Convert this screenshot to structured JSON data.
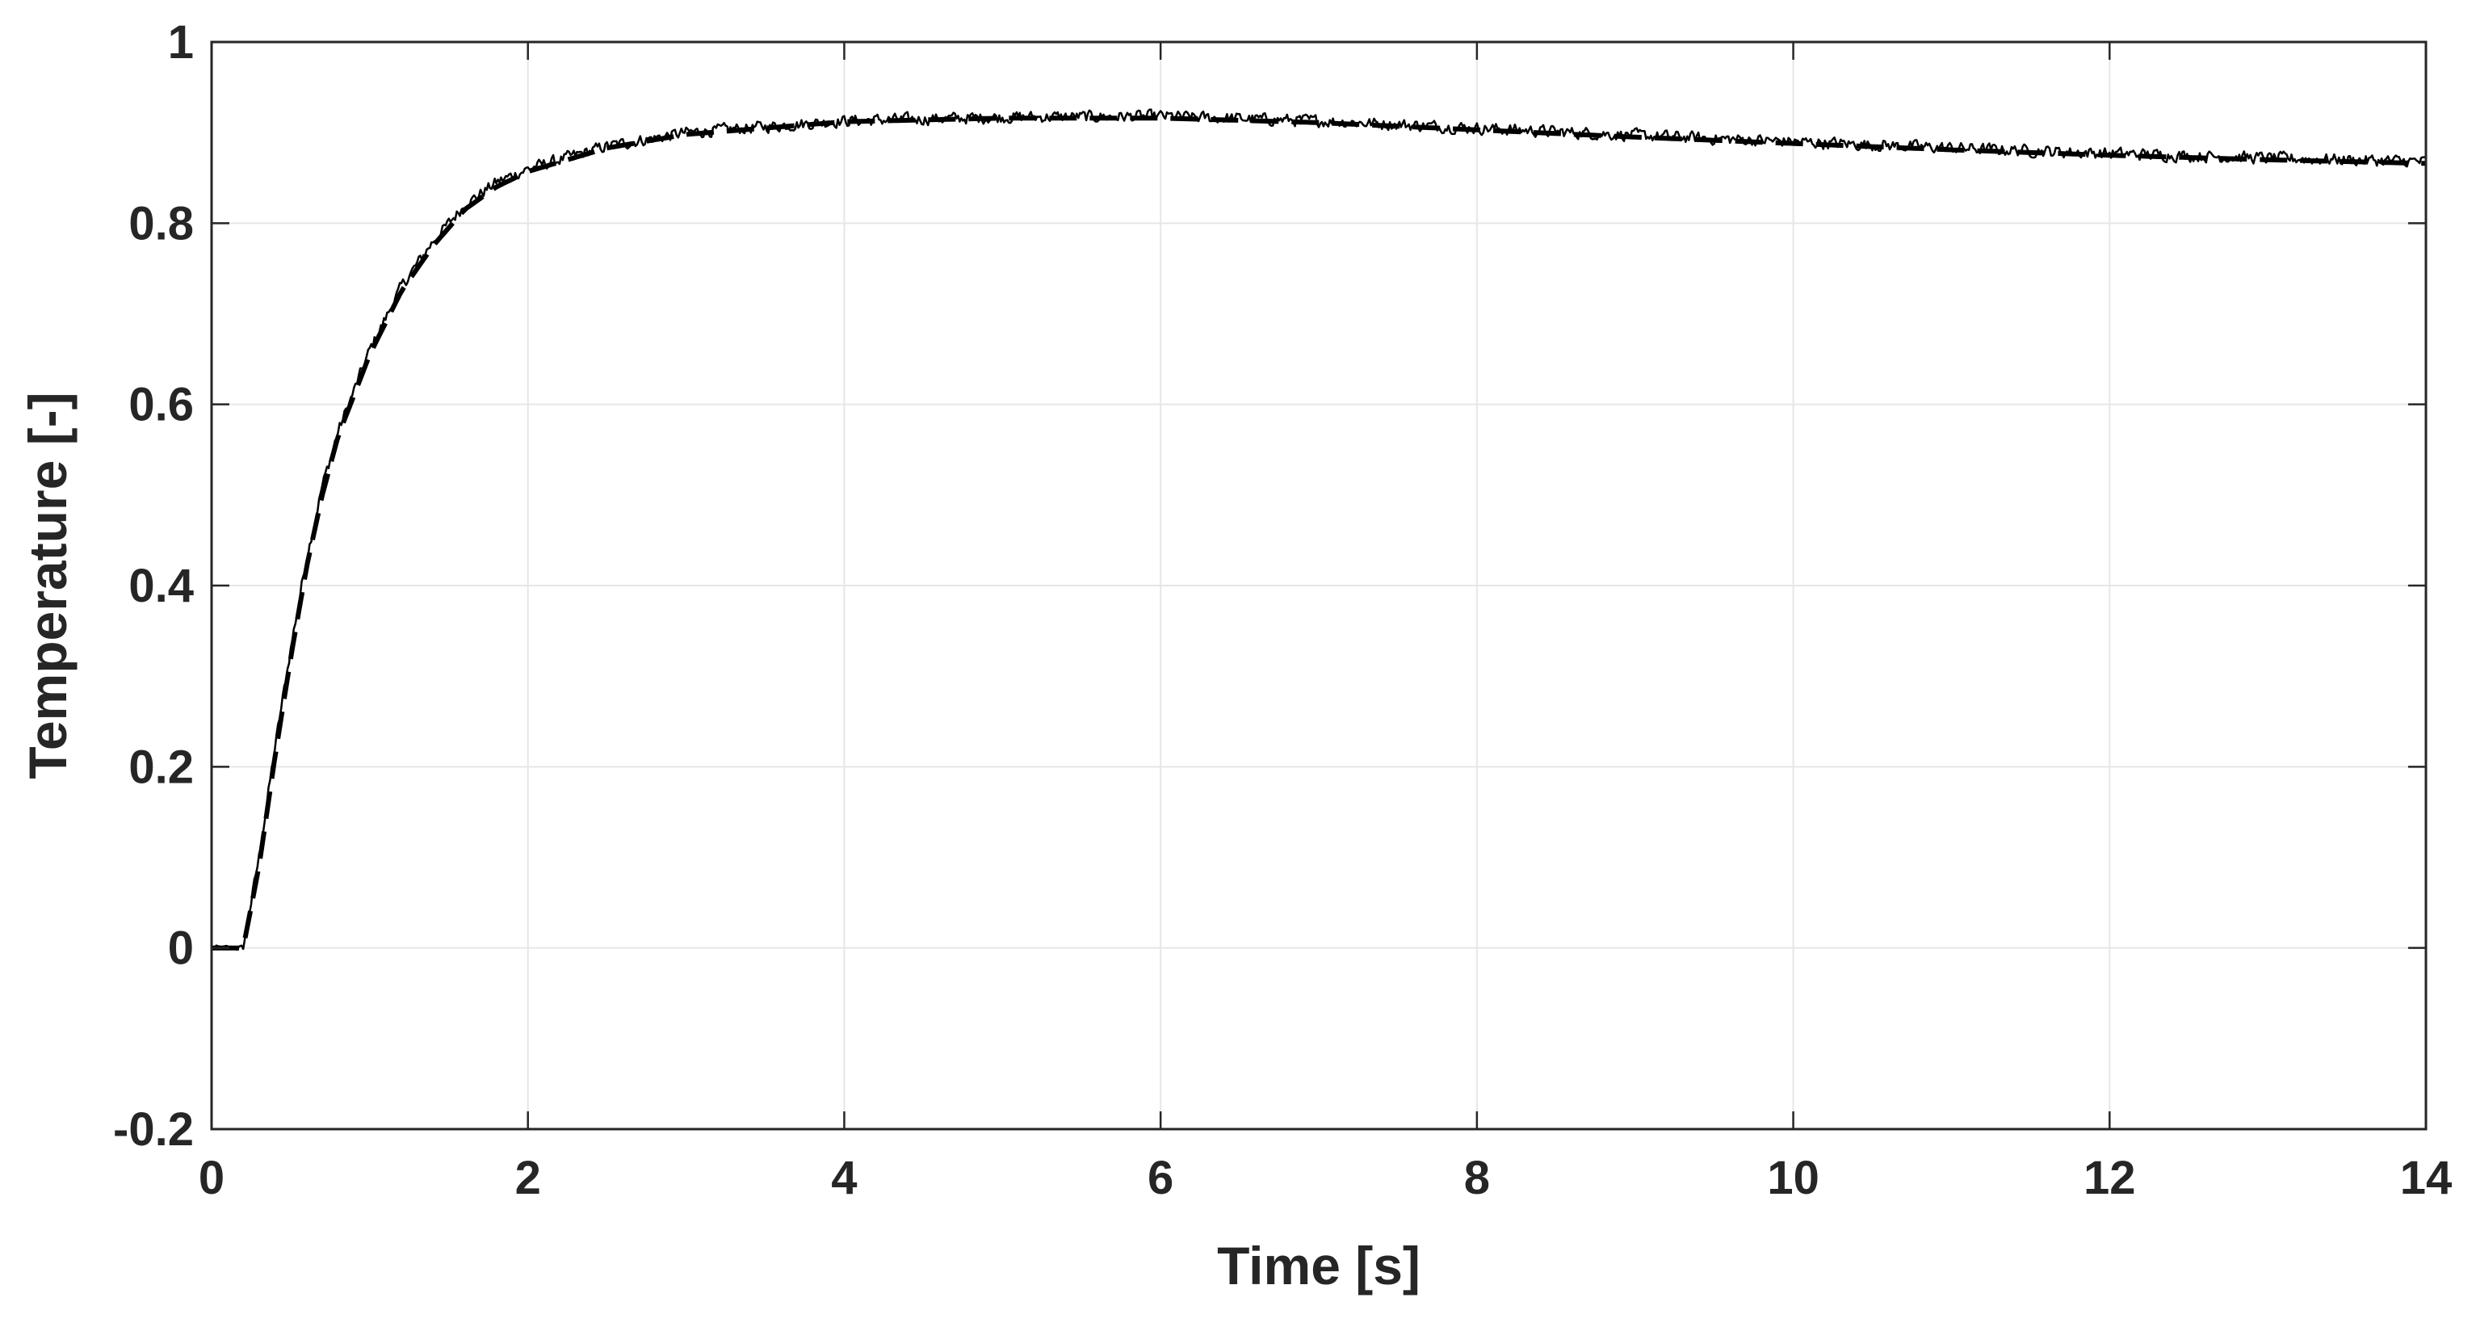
{
  "chart_data": {
    "type": "line",
    "xlabel": "Time [s]",
    "ylabel": "Temperature [-]",
    "title": "",
    "xlim": [
      0,
      14
    ],
    "ylim": [
      -0.2,
      1
    ],
    "xticks": [
      "0",
      "2",
      "4",
      "6",
      "8",
      "10",
      "12",
      "14"
    ],
    "yticks": [
      "-0.2",
      "0",
      "0.2",
      "0.4",
      "0.6",
      "0.8",
      "1"
    ],
    "grid": true,
    "legend": "none",
    "colors": {
      "line": "#000000",
      "axis": "#262626",
      "grid": "#e6e6e6"
    },
    "series": [
      {
        "style": "solid-noisy",
        "x": [
          0,
          0.2,
          0.3,
          0.4,
          0.5,
          0.6,
          0.7,
          0.8,
          1.0,
          1.2,
          1.4,
          1.6,
          1.8,
          2.0,
          2.5,
          3.0,
          4.0,
          5.0,
          6.0,
          7.0,
          8.0,
          9.0,
          10.0,
          11.0,
          12.0,
          13.0,
          14.0
        ],
        "y": [
          0,
          0,
          0.1,
          0.22,
          0.33,
          0.43,
          0.51,
          0.57,
          0.66,
          0.73,
          0.78,
          0.82,
          0.845,
          0.86,
          0.885,
          0.9,
          0.913,
          0.917,
          0.918,
          0.913,
          0.905,
          0.897,
          0.89,
          0.883,
          0.877,
          0.872,
          0.868
        ]
      },
      {
        "style": "dashed",
        "x": [
          0,
          0.2,
          0.3,
          0.4,
          0.5,
          0.6,
          0.7,
          0.8,
          1.0,
          1.2,
          1.4,
          1.6,
          1.8,
          2.0,
          2.5,
          3.0,
          4.0,
          5.0,
          6.0,
          7.0,
          8.0,
          9.0,
          10.0,
          11.0,
          12.0,
          13.0,
          14.0
        ],
        "y": [
          0,
          0,
          0.09,
          0.21,
          0.32,
          0.42,
          0.5,
          0.565,
          0.655,
          0.725,
          0.775,
          0.815,
          0.84,
          0.857,
          0.883,
          0.898,
          0.912,
          0.916,
          0.916,
          0.911,
          0.903,
          0.895,
          0.888,
          0.881,
          0.875,
          0.87,
          0.866
        ]
      }
    ]
  }
}
